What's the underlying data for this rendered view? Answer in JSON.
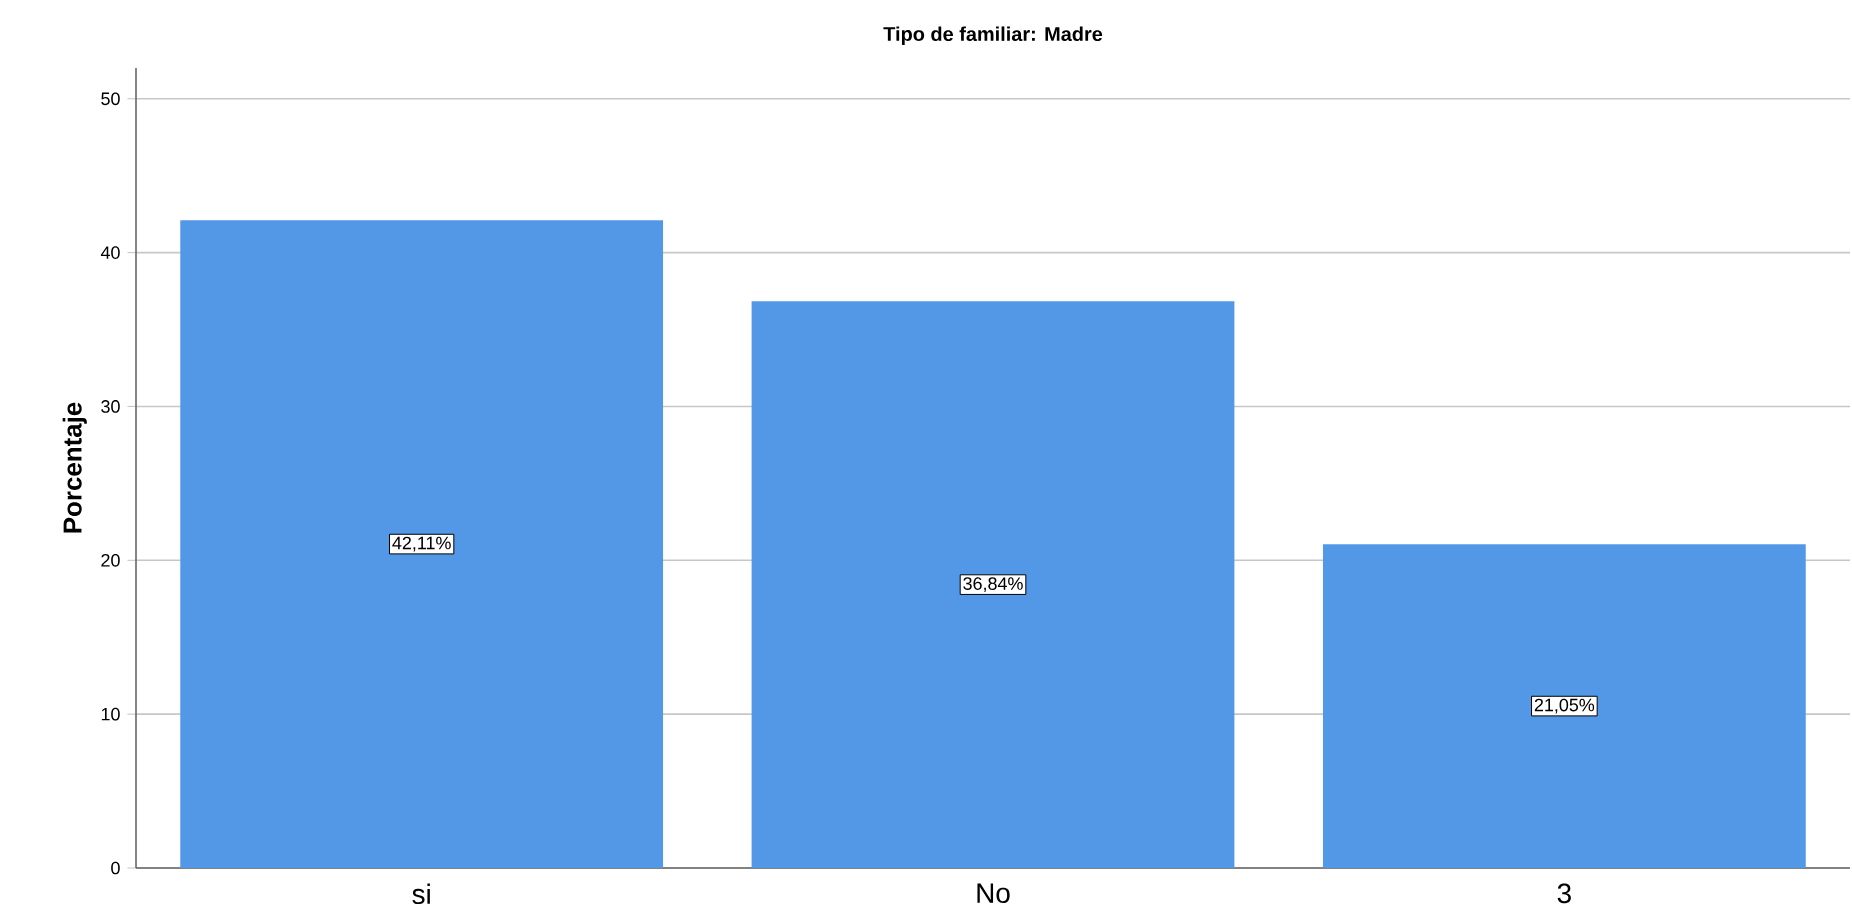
{
  "chart_data": {
    "type": "bar",
    "title": "Tipo de familiar: Madre",
    "ylabel": "Porcentaje",
    "categories": [
      "si",
      "No",
      "3"
    ],
    "values": [
      42.11,
      36.84,
      21.05
    ],
    "value_labels": [
      "42,11%",
      "36,84%",
      "21,05%"
    ],
    "color": "#5298e6",
    "ylim": [
      0,
      52
    ],
    "yticks": [
      0,
      10,
      20,
      30,
      40,
      50
    ],
    "grid": "y"
  }
}
